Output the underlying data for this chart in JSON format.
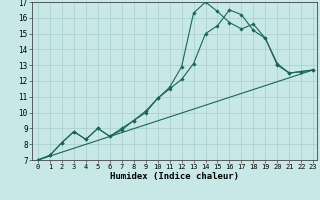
{
  "xlabel": "Humidex (Indice chaleur)",
  "xlim": [
    0,
    23
  ],
  "ylim": [
    7,
    17
  ],
  "xticks": [
    0,
    1,
    2,
    3,
    4,
    5,
    6,
    7,
    8,
    9,
    10,
    11,
    12,
    13,
    14,
    15,
    16,
    17,
    18,
    19,
    20,
    21,
    22,
    23
  ],
  "yticks": [
    7,
    8,
    9,
    10,
    11,
    12,
    13,
    14,
    15,
    16,
    17
  ],
  "background_color": "#c8e8e8",
  "grid_color": "#a8cccc",
  "line_color": "#1a6655",
  "line1_x": [
    0,
    1,
    2,
    3,
    4,
    5,
    6,
    7,
    8,
    9,
    10,
    11,
    12,
    13,
    14,
    15,
    16,
    17,
    18,
    19,
    20,
    21,
    22,
    23
  ],
  "line1_y": [
    7.0,
    7.3,
    8.1,
    8.8,
    8.3,
    9.0,
    8.5,
    9.0,
    9.5,
    10.0,
    10.9,
    11.6,
    12.9,
    16.3,
    17.0,
    16.4,
    15.7,
    15.3,
    15.6,
    14.7,
    13.1,
    12.5,
    12.6,
    12.7
  ],
  "line2_x": [
    0,
    23
  ],
  "line2_y": [
    7.0,
    12.7
  ],
  "line3_x": [
    0,
    1,
    2,
    3,
    4,
    5,
    6,
    7,
    8,
    9,
    10,
    11,
    12,
    13,
    14,
    15,
    16,
    17,
    18,
    19,
    20,
    21,
    22,
    23
  ],
  "line3_y": [
    7.0,
    7.3,
    8.1,
    8.8,
    8.3,
    9.0,
    8.5,
    8.9,
    9.5,
    10.1,
    10.9,
    11.5,
    12.1,
    13.1,
    15.0,
    15.5,
    16.5,
    16.2,
    15.2,
    14.7,
    13.0,
    12.5,
    12.6,
    12.7
  ]
}
